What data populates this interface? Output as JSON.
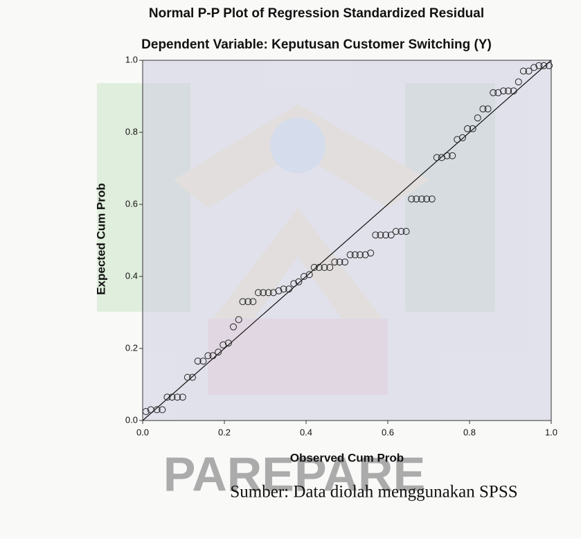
{
  "chart_data": {
    "type": "scatter",
    "title": "Normal P-P Plot of Regression Standardized Residual",
    "subtitle": "Dependent Variable: Keputusan Customer Switching (Y)",
    "x_label": "Observed Cum Prob",
    "y_label": "Expected Cum Prob",
    "source": "Sumber: Data diolah menggunakan SPSS",
    "xlim": [
      0,
      1
    ],
    "ylim": [
      0,
      1
    ],
    "xticks": [
      {
        "value": 0,
        "label": "0.0"
      },
      {
        "value": 0.2,
        "label": "0.2"
      },
      {
        "value": 0.4,
        "label": "0.4"
      },
      {
        "value": 0.6,
        "label": "0.6"
      },
      {
        "value": 0.8,
        "label": "0.8"
      },
      {
        "value": 1,
        "label": "1.0"
      }
    ],
    "yticks": [
      {
        "value": 0,
        "label": "0.0"
      },
      {
        "value": 0.2,
        "label": "0.2"
      },
      {
        "value": 0.4,
        "label": "0.4"
      },
      {
        "value": 0.6,
        "label": "0.6"
      },
      {
        "value": 0.8,
        "label": "0.8"
      },
      {
        "value": 1,
        "label": "1.0"
      }
    ],
    "reference_line": true,
    "color": "#222222",
    "x": [
      0.008,
      0.02,
      0.035,
      0.048,
      0.06,
      0.072,
      0.085,
      0.098,
      0.11,
      0.122,
      0.135,
      0.148,
      0.16,
      0.172,
      0.185,
      0.197,
      0.21,
      0.222,
      0.235,
      0.245,
      0.258,
      0.27,
      0.283,
      0.295,
      0.308,
      0.32,
      0.333,
      0.345,
      0.358,
      0.37,
      0.382,
      0.395,
      0.408,
      0.42,
      0.432,
      0.445,
      0.458,
      0.47,
      0.482,
      0.495,
      0.508,
      0.52,
      0.532,
      0.545,
      0.558,
      0.57,
      0.582,
      0.595,
      0.608,
      0.62,
      0.633,
      0.645,
      0.658,
      0.67,
      0.683,
      0.695,
      0.708,
      0.72,
      0.732,
      0.745,
      0.758,
      0.77,
      0.783,
      0.795,
      0.808,
      0.82,
      0.833,
      0.845,
      0.858,
      0.87,
      0.883,
      0.895,
      0.908,
      0.92,
      0.932,
      0.945,
      0.958,
      0.97,
      0.982,
      0.995
    ],
    "values": [
      0.025,
      0.03,
      0.03,
      0.03,
      0.065,
      0.065,
      0.065,
      0.065,
      0.12,
      0.12,
      0.165,
      0.165,
      0.18,
      0.18,
      0.19,
      0.21,
      0.215,
      0.26,
      0.28,
      0.33,
      0.33,
      0.33,
      0.355,
      0.355,
      0.355,
      0.355,
      0.36,
      0.365,
      0.365,
      0.38,
      0.385,
      0.4,
      0.405,
      0.425,
      0.425,
      0.425,
      0.425,
      0.44,
      0.44,
      0.44,
      0.46,
      0.46,
      0.46,
      0.46,
      0.465,
      0.515,
      0.515,
      0.515,
      0.515,
      0.525,
      0.525,
      0.525,
      0.615,
      0.615,
      0.615,
      0.615,
      0.615,
      0.73,
      0.73,
      0.735,
      0.735,
      0.78,
      0.785,
      0.81,
      0.81,
      0.84,
      0.865,
      0.865,
      0.91,
      0.91,
      0.915,
      0.915,
      0.915,
      0.94,
      0.97,
      0.97,
      0.98,
      0.985,
      0.985,
      0.985
    ]
  }
}
